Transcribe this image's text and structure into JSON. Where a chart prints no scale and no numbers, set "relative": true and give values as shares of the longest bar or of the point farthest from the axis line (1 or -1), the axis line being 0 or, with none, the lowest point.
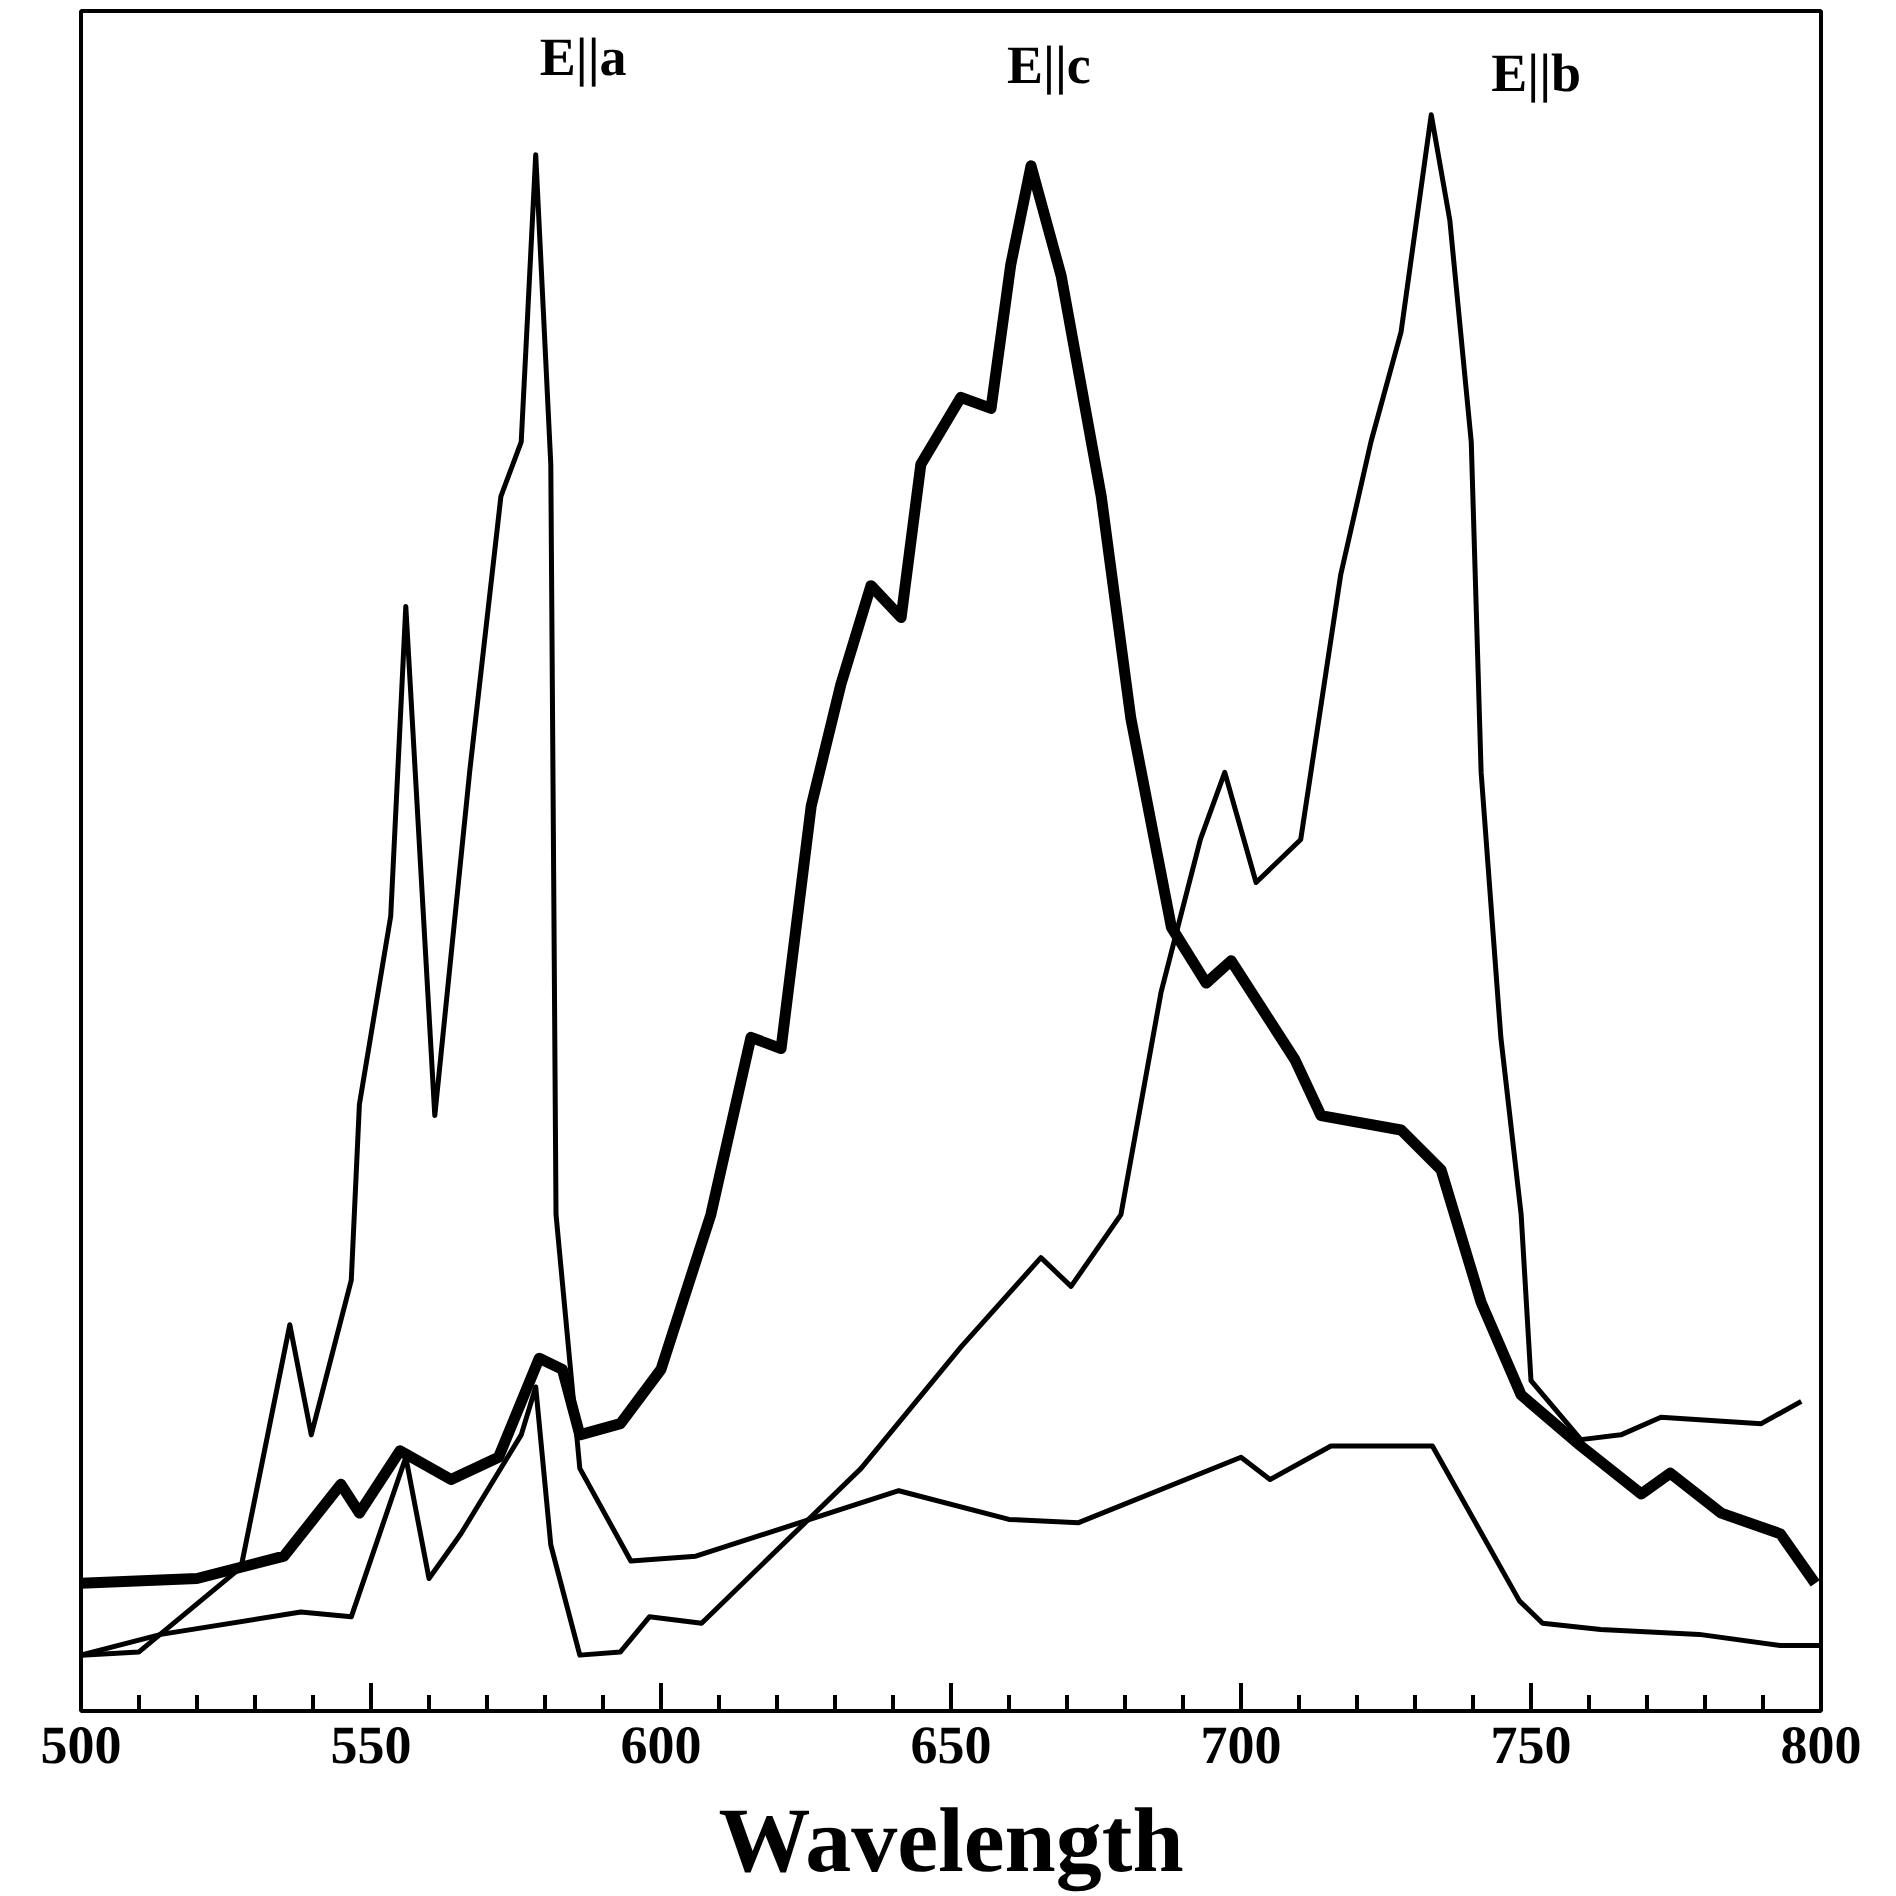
{
  "chart_data": {
    "type": "line",
    "relative": true,
    "xlabel": "Wavelength",
    "xlim": [
      500,
      800
    ],
    "xticks": [
      500,
      {
        "value": 510,
        "label": null
      },
      {
        "value": 520,
        "label": null
      },
      {
        "value": 530,
        "label": null
      },
      {
        "value": 540,
        "label": null
      },
      550,
      {
        "value": 560,
        "label": null
      },
      {
        "value": 570,
        "label": null
      },
      {
        "value": 580,
        "label": null
      },
      {
        "value": 590,
        "label": null
      },
      600,
      {
        "value": 610,
        "label": null
      },
      {
        "value": 620,
        "label": null
      },
      {
        "value": 630,
        "label": null
      },
      {
        "value": 640,
        "label": null
      },
      650,
      {
        "value": 660,
        "label": null
      },
      {
        "value": 670,
        "label": null
      },
      {
        "value": 680,
        "label": null
      },
      {
        "value": 690,
        "label": null
      },
      700,
      {
        "value": 710,
        "label": null
      },
      {
        "value": 720,
        "label": null
      },
      {
        "value": 730,
        "label": null
      },
      {
        "value": 740,
        "label": null
      },
      750,
      {
        "value": 760,
        "label": null
      },
      {
        "value": 770,
        "label": null
      },
      {
        "value": 780,
        "label": null
      },
      {
        "value": 790,
        "label": null
      },
      800
    ],
    "grid": false,
    "line_style": "solid",
    "marker": "none",
    "series": [
      {
        "name": "E||a",
        "color": "#000000",
        "x": [
          500,
          510,
          527.6,
          536,
          539.7,
          546.6,
          548,
          553.4,
          556,
          561,
          567,
          572.4,
          575.9,
          578.4,
          581,
          581.9,
          586,
          594.8,
          606,
          641,
          660,
          672,
          700,
          705,
          715.5,
          733,
          748,
          752,
          762,
          779,
          793,
          800
        ],
        "values": [
          0.035,
          0.037,
          0.09,
          0.242,
          0.173,
          0.27,
          0.38,
          0.498,
          0.692,
          0.373,
          0.588,
          0.761,
          0.795,
          0.975,
          0.781,
          0.311,
          0.152,
          0.094,
          0.097,
          0.138,
          0.12,
          0.118,
          0.159,
          0.145,
          0.166,
          0.166,
          0.069,
          0.055,
          0.051,
          0.048,
          0.041,
          0.041
        ]
      },
      {
        "name": "E||c",
        "color": "#000000",
        "x": [
          500,
          520,
          535,
          544.8,
          548,
          555,
          563.8,
          572,
          579,
          583,
          586,
          593,
          600,
          608.6,
          615.5,
          620.7,
          625.9,
          631,
          636.2,
          641.4,
          644.8,
          651.7,
          656.9,
          660.3,
          663.8,
          669,
          675.9,
          681,
          688,
          694,
          698.3,
          709.3,
          713.8,
          727.6,
          734.5,
          741.4,
          748.3,
          758.6,
          769,
          774,
          782.8,
          793,
          799
        ],
        "values": [
          0.08,
          0.083,
          0.097,
          0.142,
          0.124,
          0.163,
          0.145,
          0.159,
          0.221,
          0.214,
          0.173,
          0.18,
          0.214,
          0.311,
          0.422,
          0.415,
          0.567,
          0.643,
          0.705,
          0.685,
          0.781,
          0.823,
          0.816,
          0.906,
          0.968,
          0.899,
          0.761,
          0.622,
          0.491,
          0.456,
          0.47,
          0.408,
          0.373,
          0.364,
          0.339,
          0.256,
          0.198,
          0.166,
          0.136,
          0.149,
          0.124,
          0.111,
          0.08
        ]
      },
      {
        "name": "E||b",
        "color": "#000000",
        "x": [
          500,
          513.8,
          537.9,
          546.6,
          556,
          560,
          565.5,
          575.9,
          578.4,
          581,
          586,
          593,
          598,
          607,
          634.5,
          651.7,
          665.5,
          670.7,
          679.3,
          686.2,
          693,
          697.2,
          702.6,
          710.3,
          717.2,
          722.4,
          727.6,
          732.8,
          736,
          739.7,
          741.4,
          744.8,
          748.3,
          750,
          758.6,
          765.5,
          772.4,
          789.7,
          796.6
        ],
        "values": [
          0.035,
          0.048,
          0.062,
          0.059,
          0.159,
          0.083,
          0.111,
          0.173,
          0.203,
          0.104,
          0.035,
          0.037,
          0.059,
          0.055,
          0.152,
          0.228,
          0.284,
          0.266,
          0.311,
          0.45,
          0.546,
          0.588,
          0.519,
          0.546,
          0.712,
          0.795,
          0.864,
          1.0,
          0.934,
          0.795,
          0.588,
          0.422,
          0.311,
          0.207,
          0.17,
          0.173,
          0.184,
          0.18,
          0.194
        ]
      }
    ]
  }
}
